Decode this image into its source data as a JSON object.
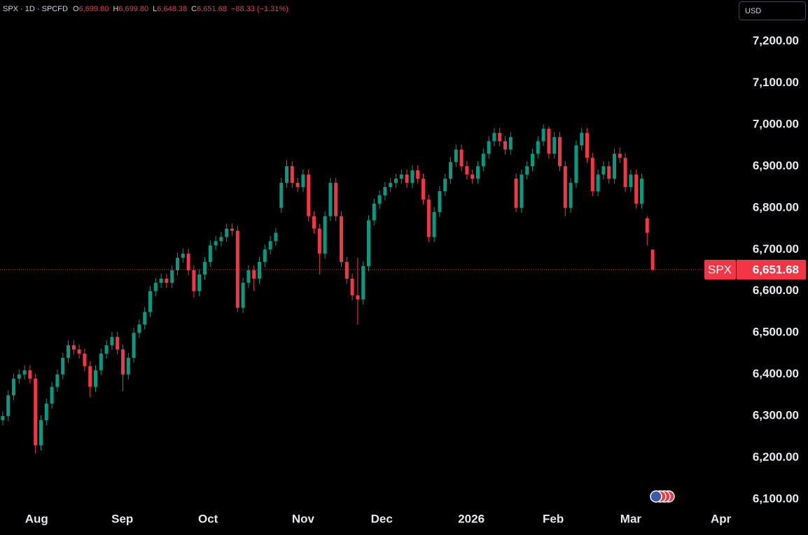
{
  "chart_data": {
    "type": "candlestick",
    "header": {
      "symbol_line": "SPX · 1D · SPCFD",
      "fields": [
        {
          "key": "O",
          "value": "6,699.80"
        },
        {
          "key": "H",
          "value": "6,699.80"
        },
        {
          "key": "L",
          "value": "6,648.38"
        },
        {
          "key": "C",
          "value": "6,651.68"
        }
      ],
      "change": "−88.33 (−1.31%)"
    },
    "currency_button": "USD",
    "price_label": {
      "symbol": "SPX",
      "value": 6651.68,
      "label": "6,651.68"
    },
    "up_color": "#089981",
    "down_color": "#f23645",
    "open": [
      6290,
      6300,
      6350,
      6390,
      6400,
      6410,
      6390,
      6230,
      6290,
      6330,
      6370,
      6400,
      6440,
      6470,
      6460,
      6450,
      6420,
      6370,
      6410,
      6450,
      6470,
      6490,
      6460,
      6400,
      6440,
      6500,
      6520,
      6550,
      6600,
      6620,
      6630,
      6620,
      6650,
      6680,
      6690,
      6650,
      6600,
      6640,
      6670,
      6710,
      6720,
      6730,
      6750,
      6745,
      6560,
      6620,
      6650,
      6630,
      6670,
      6700,
      6720,
      6800,
      6860,
      6900,
      6860,
      6850,
      6880,
      6780,
      6750,
      6690,
      6780,
      6860,
      6780,
      6670,
      6630,
      6590,
      6580,
      6660,
      6770,
      6810,
      6830,
      6850,
      6860,
      6870,
      6880,
      6860,
      6890,
      6870,
      6820,
      6730,
      6790,
      6840,
      6870,
      6910,
      6940,
      6900,
      6880,
      6870,
      6900,
      6930,
      6960,
      6980,
      6960,
      6940,
      6870,
      6800,
      6880,
      6900,
      6930,
      6960,
      6990,
      6930,
      6970,
      6900,
      6800,
      6860,
      6950,
      6980,
      6920,
      6840,
      6880,
      6900,
      6870,
      6930,
      6920,
      6850,
      6880,
      6810,
      6775,
      6699.8
    ],
    "high": [
      6312,
      6362,
      6402,
      6412,
      6422,
      6422,
      6402,
      6302,
      6342,
      6382,
      6412,
      6452,
      6482,
      6482,
      6472,
      6462,
      6432,
      6422,
      6462,
      6482,
      6502,
      6502,
      6472,
      6452,
      6512,
      6532,
      6562,
      6612,
      6632,
      6642,
      6642,
      6662,
      6692,
      6702,
      6702,
      6662,
      6652,
      6682,
      6722,
      6732,
      6742,
      6762,
      6762,
      6757,
      6632,
      6662,
      6662,
      6682,
      6712,
      6732,
      6752,
      6872,
      6915,
      6912,
      6872,
      6892,
      6892,
      6792,
      6762,
      6792,
      6872,
      6872,
      6792,
      6682,
      6642,
      6680,
      6672,
      6782,
      6822,
      6842,
      6862,
      6872,
      6882,
      6892,
      6892,
      6902,
      6902,
      6882,
      6832,
      6802,
      6852,
      6882,
      6922,
      6952,
      6952,
      6912,
      6892,
      6912,
      6942,
      6972,
      6992,
      6992,
      6972,
      6982,
      6882,
      6892,
      6912,
      6942,
      6972,
      7000,
      6995,
      6982,
      6982,
      6912,
      6872,
      6962,
      6992,
      6992,
      6932,
      6892,
      6912,
      6912,
      6942,
      6945,
      6932,
      6892,
      6892,
      6882,
      6780,
      6699.8
    ],
    "low": [
      6278,
      6288,
      6338,
      6378,
      6388,
      6378,
      6210,
      6218,
      6278,
      6318,
      6358,
      6388,
      6428,
      6448,
      6438,
      6408,
      6345,
      6358,
      6398,
      6438,
      6458,
      6448,
      6360,
      6388,
      6428,
      6488,
      6508,
      6538,
      6588,
      6608,
      6608,
      6608,
      6638,
      6668,
      6638,
      6585,
      6588,
      6628,
      6658,
      6698,
      6708,
      6718,
      6733,
      6550,
      6548,
      6608,
      6600,
      6618,
      6658,
      6688,
      6708,
      6788,
      6848,
      6848,
      6838,
      6838,
      6768,
      6738,
      6640,
      6678,
      6768,
      6768,
      6658,
      6618,
      6578,
      6520,
      6568,
      6648,
      6758,
      6798,
      6818,
      6838,
      6848,
      6858,
      6848,
      6848,
      6858,
      6808,
      6718,
      6718,
      6778,
      6828,
      6858,
      6898,
      6888,
      6868,
      6858,
      6858,
      6888,
      6918,
      6948,
      6948,
      6928,
      6928,
      6790,
      6788,
      6868,
      6888,
      6918,
      6948,
      6918,
      6918,
      6888,
      6780,
      6788,
      6848,
      6938,
      6908,
      6828,
      6828,
      6868,
      6858,
      6858,
      6908,
      6838,
      6838,
      6798,
      6798,
      6710,
      6648.38
    ],
    "close": [
      6300,
      6350,
      6390,
      6400,
      6410,
      6390,
      6230,
      6290,
      6330,
      6370,
      6400,
      6440,
      6470,
      6460,
      6450,
      6420,
      6370,
      6410,
      6450,
      6470,
      6490,
      6460,
      6400,
      6440,
      6500,
      6520,
      6550,
      6600,
      6620,
      6630,
      6620,
      6650,
      6680,
      6690,
      6650,
      6600,
      6640,
      6670,
      6710,
      6720,
      6730,
      6750,
      6745,
      6560,
      6620,
      6650,
      6630,
      6670,
      6700,
      6720,
      6740,
      6860,
      6900,
      6860,
      6850,
      6880,
      6780,
      6750,
      6690,
      6780,
      6860,
      6780,
      6670,
      6630,
      6590,
      6580,
      6660,
      6770,
      6810,
      6830,
      6850,
      6860,
      6870,
      6880,
      6860,
      6890,
      6870,
      6820,
      6730,
      6790,
      6840,
      6870,
      6910,
      6940,
      6900,
      6880,
      6870,
      6900,
      6930,
      6960,
      6980,
      6960,
      6940,
      6970,
      6800,
      6880,
      6900,
      6930,
      6960,
      6990,
      6930,
      6970,
      6900,
      6800,
      6860,
      6950,
      6980,
      6920,
      6840,
      6880,
      6900,
      6870,
      6930,
      6920,
      6850,
      6880,
      6810,
      6870,
      6740.01,
      6651.68
    ],
    "xlim": [
      -0.5,
      134.5
    ],
    "xticks": [
      {
        "value": 6.2,
        "label": "Aug"
      },
      {
        "value": 21.9,
        "label": "Sep"
      },
      {
        "value": 37.6,
        "label": "Oct"
      },
      {
        "value": 55,
        "label": "Nov"
      },
      {
        "value": 69.4,
        "label": "Dec"
      },
      {
        "value": 85.8,
        "label": "2026"
      },
      {
        "value": 100.8,
        "label": "Feb"
      },
      {
        "value": 115,
        "label": "Mar"
      },
      {
        "value": 131.5,
        "label": "Apr"
      }
    ],
    "ylim": [
      6075,
      7299
    ],
    "yticks": [
      {
        "value": 6100,
        "label": "6,100.00"
      },
      {
        "value": 6200,
        "label": "6,200.00"
      },
      {
        "value": 6300,
        "label": "6,300.00"
      },
      {
        "value": 6400,
        "label": "6,400.00"
      },
      {
        "value": 6500,
        "label": "6,500.00"
      },
      {
        "value": 6600,
        "label": "6,600.00"
      },
      {
        "value": 6700,
        "label": "6,700.00"
      },
      {
        "value": 6800,
        "label": "6,800.00"
      },
      {
        "value": 6900,
        "label": "6,900.00"
      },
      {
        "value": 7000,
        "label": "7,000.00"
      },
      {
        "value": 7100,
        "label": "7,100.00"
      },
      {
        "value": 7200,
        "label": "7,200.00"
      }
    ]
  }
}
